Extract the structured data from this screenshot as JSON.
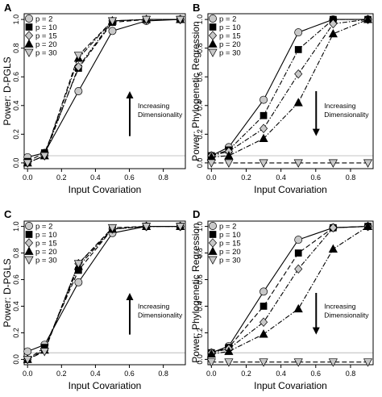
{
  "colors": {
    "p2": "#c8c8c8",
    "p10": "#000000",
    "p15": "#c8c8c8",
    "p20": "#000000",
    "p30": "#c8c8c8",
    "reference_line": "#b0b0b0"
  },
  "chart_data": [
    {
      "type": "line",
      "panel_label": "A",
      "ylabel": "Power: D-PGLS",
      "xlabel": "Input Covariation",
      "xlim": [
        -0.02,
        0.93
      ],
      "ylim": [
        -0.04,
        1.04
      ],
      "x_ticks": [
        0.0,
        0.2,
        0.4,
        0.6,
        0.8
      ],
      "x_tick_labels": [
        "0.0",
        "0.2",
        "0.4",
        "0.6",
        "0.8"
      ],
      "y_ticks": [
        0.0,
        0.2,
        0.4,
        0.6,
        0.8,
        1.0
      ],
      "y_tick_labels": [
        "0.0",
        "0.2",
        "0.4",
        "0.6",
        "0.8",
        "1.0"
      ],
      "reference_line": 0.05,
      "legend_position": "top-left",
      "annotation": {
        "lines": [
          "Increasing",
          "Dimensionality"
        ],
        "arrow": "up"
      },
      "x": [
        0.0,
        0.1,
        0.3,
        0.5,
        0.7,
        0.9
      ],
      "series": [
        {
          "name": "p = 2",
          "marker": "circle",
          "line": "solid",
          "values": [
            0.04,
            0.07,
            0.5,
            0.92,
            0.99,
            1.0
          ]
        },
        {
          "name": "p = 10",
          "marker": "square",
          "line": "dashed",
          "values": [
            0.01,
            0.07,
            0.66,
            0.98,
            1.0,
            1.0
          ]
        },
        {
          "name": "p = 15",
          "marker": "diamond",
          "line": "dotdash",
          "values": [
            0.0,
            0.05,
            0.67,
            0.99,
            1.0,
            1.0
          ]
        },
        {
          "name": "p = 20",
          "marker": "triangle-up",
          "line": "dotdash",
          "values": [
            0.0,
            0.05,
            0.73,
            0.99,
            1.0,
            1.0
          ]
        },
        {
          "name": "p = 30",
          "marker": "triangle-down",
          "line": "dashed",
          "values": [
            0.0,
            0.05,
            0.75,
            0.99,
            1.0,
            1.0
          ]
        }
      ]
    },
    {
      "type": "line",
      "panel_label": "B",
      "ylabel": "Power: Phylogenetic Regression",
      "xlabel": "Input Covariation",
      "xlim": [
        -0.02,
        0.93
      ],
      "ylim": [
        -0.04,
        1.04
      ],
      "x_ticks": [
        0.0,
        0.2,
        0.4,
        0.6,
        0.8
      ],
      "x_tick_labels": [
        "0.0",
        "0.2",
        "0.4",
        "0.6",
        "0.8"
      ],
      "y_ticks": [
        0.0,
        0.2,
        0.4,
        0.6,
        0.8,
        1.0
      ],
      "y_tick_labels": [
        "0.0",
        "0.2",
        "0.4",
        "0.6",
        "0.8",
        "1.0"
      ],
      "reference_line": 0.05,
      "legend_position": "top-left",
      "annotation": {
        "lines": [
          "Increasing",
          "Dimensionality"
        ],
        "arrow": "down"
      },
      "x": [
        0.0,
        0.1,
        0.3,
        0.5,
        0.7,
        0.9
      ],
      "series": [
        {
          "name": "p = 2",
          "marker": "circle",
          "line": "solid",
          "values": [
            0.05,
            0.11,
            0.44,
            0.91,
            1.0,
            1.0
          ]
        },
        {
          "name": "p = 10",
          "marker": "square",
          "line": "dotdash",
          "values": [
            0.05,
            0.09,
            0.33,
            0.79,
            1.0,
            1.0
          ]
        },
        {
          "name": "p = 15",
          "marker": "diamond",
          "line": "dotdash",
          "values": [
            0.05,
            0.08,
            0.24,
            0.62,
            0.97,
            1.0
          ]
        },
        {
          "name": "p = 20",
          "marker": "triangle-up",
          "line": "dotdash",
          "values": [
            0.04,
            0.05,
            0.17,
            0.42,
            0.9,
            1.0
          ]
        },
        {
          "name": "p = 30",
          "marker": "triangle-down",
          "line": "dashed",
          "values": [
            0.0,
            0.0,
            0.0,
            0.0,
            0.0,
            0.0
          ]
        }
      ]
    },
    {
      "type": "line",
      "panel_label": "C",
      "ylabel": "Power: D-PGLS",
      "xlabel": "Input Covariation",
      "xlim": [
        -0.02,
        0.93
      ],
      "ylim": [
        -0.04,
        1.04
      ],
      "x_ticks": [
        0.0,
        0.2,
        0.4,
        0.6,
        0.8
      ],
      "x_tick_labels": [
        "0.0",
        "0.2",
        "0.4",
        "0.6",
        "0.8"
      ],
      "y_ticks": [
        0.0,
        0.2,
        0.4,
        0.6,
        0.8,
        1.0
      ],
      "y_tick_labels": [
        "0.0",
        "0.2",
        "0.4",
        "0.6",
        "0.8",
        "1.0"
      ],
      "reference_line": 0.05,
      "legend_position": "top-left",
      "annotation": {
        "lines": [
          "Increasing",
          "Dimensionality"
        ],
        "arrow": "up"
      },
      "x": [
        0.0,
        0.1,
        0.3,
        0.5,
        0.7,
        0.9
      ],
      "series": [
        {
          "name": "p = 2",
          "marker": "circle",
          "line": "solid",
          "values": [
            0.06,
            0.11,
            0.58,
            0.95,
            1.0,
            1.0
          ]
        },
        {
          "name": "p = 10",
          "marker": "square",
          "line": "dashed",
          "values": [
            0.0,
            0.09,
            0.67,
            0.98,
            1.0,
            1.0
          ]
        },
        {
          "name": "p = 15",
          "marker": "diamond",
          "line": "dotdash",
          "values": [
            0.0,
            0.07,
            0.72,
            0.98,
            1.0,
            1.0
          ]
        },
        {
          "name": "p = 20",
          "marker": "triangle-up",
          "line": "dotdash",
          "values": [
            0.0,
            0.07,
            0.7,
            0.98,
            1.0,
            1.0
          ]
        },
        {
          "name": "p = 30",
          "marker": "triangle-down",
          "line": "dashed",
          "values": [
            0.0,
            0.06,
            0.72,
            0.99,
            1.0,
            1.0
          ]
        }
      ]
    },
    {
      "type": "line",
      "panel_label": "D",
      "ylabel": "Power: Phylogenetic Regression",
      "xlabel": "Input Covariation",
      "xlim": [
        -0.02,
        0.93
      ],
      "ylim": [
        -0.04,
        1.04
      ],
      "x_ticks": [
        0.0,
        0.2,
        0.4,
        0.6,
        0.8
      ],
      "x_tick_labels": [
        "0.0",
        "0.2",
        "0.4",
        "0.6",
        "0.8"
      ],
      "y_ticks": [
        0.0,
        0.2,
        0.4,
        0.6,
        0.8,
        1.0
      ],
      "y_tick_labels": [
        "0.0",
        "0.2",
        "0.4",
        "0.6",
        "0.8",
        "1.0"
      ],
      "reference_line": 0.05,
      "legend_position": "top-left",
      "annotation": {
        "lines": [
          "Increasing",
          "Dimensionality"
        ],
        "arrow": "down"
      },
      "x": [
        0.0,
        0.1,
        0.3,
        0.5,
        0.7,
        0.9
      ],
      "series": [
        {
          "name": "p = 2",
          "marker": "circle",
          "line": "solid",
          "values": [
            0.05,
            0.1,
            0.51,
            0.9,
            0.99,
            1.0
          ]
        },
        {
          "name": "p = 10",
          "marker": "square",
          "line": "dashed",
          "values": [
            0.05,
            0.09,
            0.4,
            0.8,
            0.99,
            1.0
          ]
        },
        {
          "name": "p = 15",
          "marker": "diamond",
          "line": "dotdash",
          "values": [
            0.05,
            0.08,
            0.28,
            0.68,
            0.99,
            1.0
          ]
        },
        {
          "name": "p = 20",
          "marker": "triangle-up",
          "line": "dotdash",
          "values": [
            0.04,
            0.06,
            0.19,
            0.38,
            0.83,
            1.0
          ]
        },
        {
          "name": "p = 30",
          "marker": "triangle-down",
          "line": "dashed",
          "values": [
            -0.02,
            -0.02,
            -0.02,
            -0.02,
            -0.02,
            -0.02
          ]
        }
      ]
    }
  ]
}
